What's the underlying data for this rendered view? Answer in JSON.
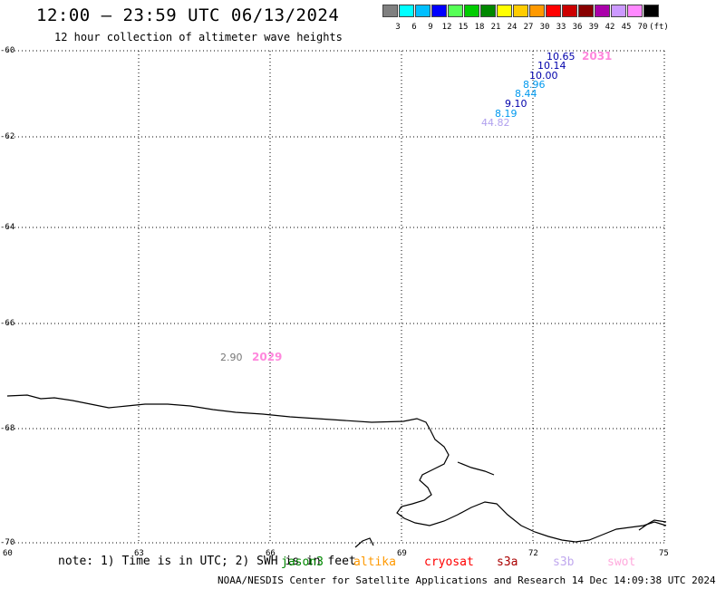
{
  "header": {
    "title": "12:00 — 23:59 UTC 06/13/2024",
    "subtitle": "12 hour collection of altimeter wave heights"
  },
  "legend": {
    "colors": [
      "#808080",
      "#00ffff",
      "#00bfff",
      "#0000ff",
      "#55ff55",
      "#00cc00",
      "#008800",
      "#ffff00",
      "#ffcc00",
      "#ff9900",
      "#ff0000",
      "#cc0000",
      "#880000",
      "#aa00aa",
      "#cc99ff",
      "#ff88ff",
      "#000000"
    ],
    "labels": [
      "3",
      "6",
      "9",
      "12",
      "15",
      "18",
      "21",
      "24",
      "27",
      "30",
      "33",
      "36",
      "39",
      "42",
      "45",
      "70"
    ],
    "unit": "(ft)"
  },
  "map": {
    "lat_labels": [
      "-60",
      "-62",
      "-64",
      "-66",
      "-68",
      "-70"
    ],
    "lon_labels": [
      "60",
      "63",
      "66",
      "69",
      "72",
      "75"
    ]
  },
  "measurements": [
    {
      "value": "10.65",
      "color": "#0000aa"
    },
    {
      "value": "10.14",
      "color": "#0000aa"
    },
    {
      "value": "10.00",
      "color": "#0000aa"
    },
    {
      "value": "8.96",
      "color": "#0099ee"
    },
    {
      "value": "8.44",
      "color": "#0099ee"
    },
    {
      "value": "9.10",
      "color": "#0000aa"
    },
    {
      "value": "8.19",
      "color": "#0099ee"
    },
    {
      "value": "44.82",
      "color": "#b0a0ee"
    },
    {
      "value": "2.90",
      "color": "#777777"
    }
  ],
  "times": [
    {
      "value": "2031",
      "color": "#ff88dd"
    },
    {
      "value": "2029",
      "color": "#ff88dd"
    }
  ],
  "footer": {
    "note": "note: 1) Time is in UTC; 2) SWH is in feet",
    "satellites": [
      {
        "name": "jason3",
        "color": "#008800"
      },
      {
        "name": "altika",
        "color": "#ff9900"
      },
      {
        "name": "cryosat",
        "color": "#ff0000"
      },
      {
        "name": "s3a",
        "color": "#aa0000"
      },
      {
        "name": "s3b",
        "color": "#c0a8ee"
      },
      {
        "name": "swot",
        "color": "#ffaadd"
      }
    ],
    "credit": "NOAA/NESDIS Center for Satellite Applications and Research    14 Dec 14:09:38 UTC 2024"
  }
}
